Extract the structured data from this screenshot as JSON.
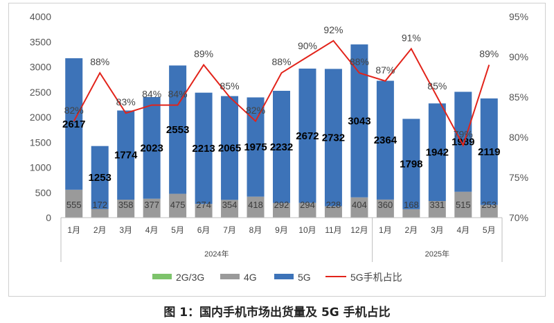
{
  "caption": "图 1：国内手机市场出货量及 5G 手机占比",
  "chart_data": {
    "type": "bar",
    "stacked": true,
    "categories": [
      "1月",
      "2月",
      "3月",
      "4月",
      "5月",
      "6月",
      "7月",
      "8月",
      "9月",
      "10月",
      "11月",
      "12月",
      "1月",
      "2月",
      "3月",
      "4月",
      "5月"
    ],
    "groups": [
      {
        "label": "2024年",
        "count": 12
      },
      {
        "label": "2025年",
        "count": 5
      }
    ],
    "series": [
      {
        "name": "2G/3G",
        "color": "#7dc36b",
        "values": [
          0,
          0,
          0,
          0,
          0,
          0,
          0,
          0,
          0,
          0,
          0,
          0,
          0,
          0,
          0,
          0,
          0
        ]
      },
      {
        "name": "4G",
        "color": "#9a9a9a",
        "values": [
          555,
          172,
          358,
          377,
          475,
          274,
          354,
          418,
          292,
          294,
          228,
          404,
          360,
          168,
          331,
          515,
          253
        ]
      },
      {
        "name": "5G",
        "color": "#3d73b8",
        "values": [
          2617,
          1253,
          1774,
          2023,
          2553,
          2213,
          2065,
          1975,
          2232,
          2672,
          2732,
          3043,
          2364,
          1798,
          1942,
          1989,
          2119
        ]
      }
    ],
    "line_series": {
      "name": "5G手机占比",
      "color": "#e2231a",
      "values": [
        82,
        88,
        83,
        84,
        84,
        89,
        85,
        82,
        88,
        90,
        92,
        88,
        87,
        91,
        85,
        79,
        89
      ],
      "labels": [
        "82%",
        "88%",
        "83%",
        "84%",
        "84%",
        "89%",
        "85%",
        "82%",
        "88%",
        "90%",
        "92%",
        "88%",
        "87%",
        "91%",
        "85%",
        "79%",
        "89%"
      ]
    },
    "y_left": {
      "min": 0,
      "max": 4000,
      "ticks": [
        "0",
        "500",
        "1000",
        "1500",
        "2000",
        "2500",
        "3000",
        "3500",
        "4000"
      ]
    },
    "y_right": {
      "min": 70,
      "max": 95,
      "ticks": [
        "70%",
        "75%",
        "80%",
        "85%",
        "90%",
        "95%"
      ]
    },
    "legend": {
      "position": "bottom",
      "entries": [
        "2G/3G",
        "4G",
        "5G",
        "5G手机占比"
      ]
    }
  }
}
